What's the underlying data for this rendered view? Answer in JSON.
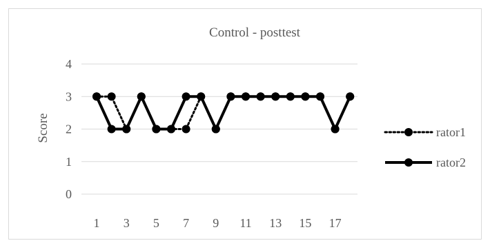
{
  "chart_data": {
    "type": "line",
    "title": "Control - posttest",
    "xlabel": "",
    "ylabel": "Score",
    "x": [
      1,
      2,
      3,
      4,
      5,
      6,
      7,
      8,
      9,
      10,
      11,
      12,
      13,
      14,
      15,
      16,
      17,
      18
    ],
    "x_tick_labels": [
      "1",
      "3",
      "5",
      "7",
      "9",
      "11",
      "13",
      "15",
      "17"
    ],
    "ylim": [
      0,
      4
    ],
    "y_ticks": [
      0,
      1,
      2,
      3,
      4
    ],
    "grid": true,
    "legend_position": "right",
    "series": [
      {
        "name": "rator1",
        "line_style": "dotted",
        "color": "#000000",
        "values": [
          3,
          3,
          2,
          3,
          2,
          2,
          2,
          3,
          2,
          3,
          3,
          3,
          3,
          3,
          3,
          3,
          2,
          3
        ]
      },
      {
        "name": "rator2",
        "line_style": "solid",
        "color": "#000000",
        "values": [
          3,
          2,
          2,
          3,
          2,
          2,
          3,
          3,
          2,
          3,
          3,
          3,
          3,
          3,
          3,
          3,
          2,
          3
        ]
      }
    ]
  }
}
